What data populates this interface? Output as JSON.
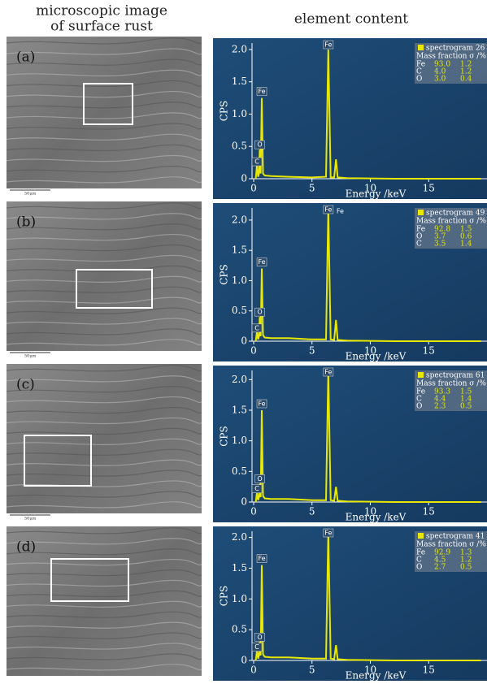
{
  "header_left": [
    "microscopic image",
    "of surface rust"
  ],
  "header_right": "element content",
  "panels": [
    {
      "label": "(a)",
      "scale_bar": "50μm"
    },
    {
      "label": "(b)",
      "scale_bar": "50μm"
    },
    {
      "label": "(c)",
      "scale_bar": "50μm"
    },
    {
      "label": "(d)"
    }
  ],
  "chart_data": [
    {
      "type": "line",
      "ylabel": "CPS",
      "xlabel": "Energy /keV",
      "xlim": [
        0,
        20
      ],
      "xticks": [
        0,
        5,
        10,
        15
      ],
      "ylim": [
        0,
        2.1
      ],
      "yticks": [
        0,
        0.5,
        {
          "value": 1,
          "label": "1.0"
        },
        1.5,
        {
          "value": 2,
          "label": "2.0"
        }
      ],
      "x": [
        0.18,
        0.28,
        0.38,
        0.45,
        0.52,
        0.6,
        0.7,
        0.8,
        0.95,
        1.5,
        3,
        5,
        6.2,
        6.4,
        6.6,
        6.9,
        7.06,
        7.2,
        8,
        12,
        19.5
      ],
      "series": [
        {
          "name": "spectrogram 26",
          "color": "#e8e800",
          "values": [
            0,
            0.2,
            0.03,
            0.08,
            0.45,
            0.08,
            1.25,
            0.08,
            0.05,
            0.04,
            0.03,
            0.02,
            0.03,
            2.0,
            0.02,
            0.02,
            0.3,
            0.02,
            0.01,
            0,
            0
          ]
        }
      ],
      "peak_labels": [
        "Fe",
        "Fe",
        "O",
        "C"
      ],
      "table_header": "Mass fraction σ /%",
      "table": [
        [
          "Fe",
          "93.0",
          "1.2"
        ],
        [
          "C",
          "4.0",
          "1.2"
        ],
        [
          "O",
          "3.0",
          "0.4"
        ]
      ]
    },
    {
      "type": "line",
      "ylabel": "CPS",
      "xlabel": "Energy /keV",
      "xlim": [
        0,
        20
      ],
      "xticks": [
        0,
        5,
        10,
        15
      ],
      "ylim": [
        0,
        2.2
      ],
      "yticks": [
        0,
        0.5,
        {
          "value": 1,
          "label": "1.0"
        },
        1.5,
        {
          "value": 2,
          "label": "2.0"
        }
      ],
      "x": [
        0.18,
        0.28,
        0.38,
        0.45,
        0.52,
        0.6,
        0.7,
        0.8,
        0.95,
        1.5,
        3,
        5,
        6.2,
        6.4,
        6.6,
        6.9,
        7.06,
        7.2,
        8,
        12,
        19.5
      ],
      "series": [
        {
          "name": "spectrogram 49",
          "color": "#e8e800",
          "values": [
            0,
            0.15,
            0.03,
            0.08,
            0.4,
            0.08,
            1.2,
            0.1,
            0.06,
            0.05,
            0.05,
            0.03,
            0.03,
            2.2,
            0.03,
            0.02,
            0.35,
            0.02,
            0.01,
            0,
            0
          ]
        }
      ],
      "peak_labels": [
        "Fe",
        "Fe",
        "O",
        "C"
      ],
      "extra_label": "Fe",
      "table_header": "Mass fraction σ /%",
      "table": [
        [
          "Fe",
          "92.8",
          "1.5"
        ],
        [
          "O",
          "3.7",
          "0.6"
        ],
        [
          "C",
          "3.5",
          "1.4"
        ]
      ]
    },
    {
      "type": "line",
      "ylabel": "CPS",
      "xlabel": "Energy /keV",
      "xlim": [
        0,
        20
      ],
      "xticks": [
        0,
        5,
        10,
        15
      ],
      "ylim": [
        0,
        2.15
      ],
      "yticks": [
        0,
        0.5,
        {
          "value": 1,
          "label": "1.0"
        },
        1.5,
        {
          "value": 2,
          "label": "2.0"
        }
      ],
      "x": [
        0.18,
        0.28,
        0.38,
        0.45,
        0.52,
        0.6,
        0.7,
        0.8,
        0.95,
        1.5,
        3,
        5,
        6.2,
        6.4,
        6.6,
        6.9,
        7.06,
        7.2,
        8,
        12,
        19.5
      ],
      "series": [
        {
          "name": "spectrogram 61",
          "color": "#e8e800",
          "values": [
            0,
            0.15,
            0.03,
            0.08,
            0.3,
            0.08,
            1.5,
            0.1,
            0.06,
            0.05,
            0.05,
            0.03,
            0.03,
            2.15,
            0.03,
            0.02,
            0.25,
            0.02,
            0.01,
            0,
            0
          ]
        }
      ],
      "peak_labels": [
        "Fe",
        "Fe",
        "O",
        "C"
      ],
      "table_header": "Mass fraction σ /%",
      "table": [
        [
          "Fe",
          "93.3",
          "1.5"
        ],
        [
          "C",
          "4.4",
          "1.4"
        ],
        [
          "O",
          "2.3",
          "0.5"
        ]
      ]
    },
    {
      "type": "line",
      "ylabel": "CPS",
      "xlabel": "Energy /keV",
      "xlim": [
        0,
        20
      ],
      "xticks": [
        0,
        5,
        10,
        15
      ],
      "ylim": [
        0,
        2.1
      ],
      "yticks": [
        0,
        0.5,
        {
          "value": 1,
          "label": "1.0"
        },
        1.5,
        {
          "value": 2,
          "label": "2.0"
        }
      ],
      "x": [
        0.18,
        0.28,
        0.38,
        0.45,
        0.52,
        0.6,
        0.7,
        0.8,
        0.95,
        1.5,
        3,
        5,
        6.2,
        6.4,
        6.6,
        6.9,
        7.06,
        7.2,
        8,
        12,
        19.5
      ],
      "series": [
        {
          "name": "spectrogram 41",
          "color": "#e8e800",
          "values": [
            0,
            0.15,
            0.03,
            0.08,
            0.3,
            0.08,
            1.55,
            0.1,
            0.06,
            0.05,
            0.05,
            0.03,
            0.03,
            2.1,
            0.03,
            0.02,
            0.25,
            0.02,
            0.01,
            0,
            0
          ]
        }
      ],
      "peak_labels": [
        "Fe",
        "Fe",
        "O",
        "C"
      ],
      "table_header": "Mass fraction σ /%",
      "table": [
        [
          "Fe",
          "92.9",
          "1.3"
        ],
        [
          "C",
          "4.5",
          "1.2"
        ],
        [
          "O",
          "2.7",
          "0.5"
        ]
      ]
    }
  ]
}
